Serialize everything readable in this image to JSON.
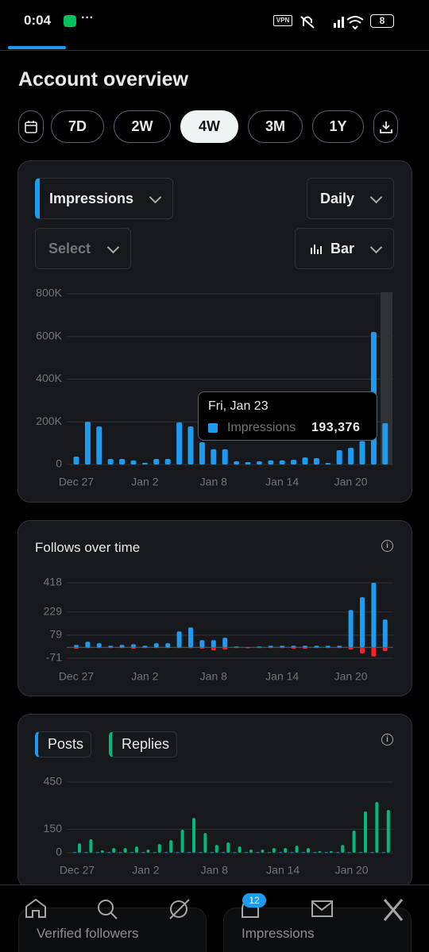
{
  "ui": {
    "status": {
      "time": "0:04",
      "battery": "8"
    },
    "header": {
      "title": "Account overview"
    },
    "ranges": [
      "7D",
      "2W",
      "4W",
      "3M",
      "1Y"
    ],
    "controls": {
      "metric": "Impressions",
      "interval": "Daily",
      "compare": "Select",
      "chart_style": "Bar"
    },
    "tooltip": {
      "title": "Fri, Jan 23",
      "series": "Impressions",
      "value": "193,376"
    },
    "bottom": {
      "badge": "12",
      "card_left": "Verified followers",
      "card_right": "Impressions"
    }
  },
  "chart_data": [
    {
      "type": "bar",
      "barmode": "overlay",
      "grid": true,
      "categories": [
        "Dec 27",
        null,
        null,
        null,
        null,
        null,
        "Jan 2",
        null,
        null,
        null,
        null,
        null,
        "Jan 8",
        null,
        null,
        null,
        null,
        null,
        "Jan 14",
        null,
        null,
        null,
        null,
        null,
        "Jan 20",
        null,
        null,
        null
      ],
      "series": [
        {
          "name": "Impressions",
          "color": "#1d9bf0",
          "values": [
            37000,
            200000,
            178000,
            26000,
            26000,
            19000,
            8000,
            26000,
            26000,
            197000,
            178000,
            104000,
            71000,
            71000,
            15000,
            11000,
            15000,
            19000,
            19000,
            22000,
            33000,
            30000,
            7000,
            67000,
            78000,
            110000,
            621000,
            193376
          ]
        }
      ],
      "ylim": [
        0,
        800000
      ],
      "yticks": [
        0,
        {
          "value": 200000,
          "label": "200K"
        },
        {
          "value": 400000,
          "label": "400K"
        },
        {
          "value": 600000,
          "label": "600K"
        },
        {
          "value": 800000,
          "label": "800K"
        }
      ]
    },
    {
      "type": "bar",
      "barmode": "overlay",
      "grid": true,
      "title": "Follows over time",
      "categories": [
        "Dec 27",
        null,
        null,
        null,
        null,
        null,
        "Jan 2",
        null,
        null,
        null,
        null,
        null,
        "Jan 8",
        null,
        null,
        null,
        null,
        null,
        "Jan 14",
        null,
        null,
        null,
        null,
        null,
        "Jan 20",
        null,
        null,
        null
      ],
      "series": [
        {
          "color": "#1d9bf0",
          "values": [
            15,
            36,
            26,
            10,
            15,
            20,
            10,
            26,
            26,
            103,
            129,
            46,
            46,
            62,
            5,
            0,
            5,
            10,
            10,
            10,
            10,
            10,
            10,
            10,
            242,
            325,
            418,
            180
          ]
        },
        {
          "color": "#f4212e",
          "values": [
            -10,
            -5,
            -5,
            -5,
            -5,
            -10,
            -5,
            -5,
            -5,
            -5,
            -5,
            -10,
            -20,
            -15,
            -5,
            -5,
            -5,
            -5,
            -5,
            -10,
            -10,
            -5,
            -5,
            -5,
            -15,
            -40,
            -60,
            -25
          ]
        }
      ],
      "ylim": [
        -71,
        418
      ],
      "yticks": [
        -71,
        79,
        229,
        418
      ]
    },
    {
      "type": "bar",
      "barmode": "group",
      "grid": true,
      "categories": [
        "Dec 27",
        null,
        null,
        null,
        null,
        null,
        "Jan 2",
        null,
        null,
        null,
        null,
        null,
        "Jan 8",
        null,
        null,
        null,
        null,
        null,
        "Jan 14",
        null,
        null,
        null,
        null,
        null,
        "Jan 20",
        null,
        null,
        null
      ],
      "series": [
        {
          "name": "Posts",
          "color": "#1d9bf0",
          "values": [
            4,
            4,
            4,
            4,
            4,
            4,
            4,
            4,
            4,
            4,
            4,
            4,
            4,
            4,
            4,
            4,
            4,
            4,
            4,
            4,
            4,
            4,
            4,
            4,
            4,
            4,
            4,
            4
          ]
        },
        {
          "name": "Replies",
          "color": "#00ba7c",
          "values": [
            60,
            86,
            15,
            30,
            30,
            40,
            20,
            55,
            80,
            146,
            222,
            126,
            50,
            66,
            40,
            20,
            20,
            30,
            30,
            45,
            30,
            10,
            10,
            50,
            141,
            263,
            323,
            273
          ]
        }
      ],
      "ylim": [
        0,
        450
      ],
      "yticks": [
        0,
        150,
        450
      ]
    }
  ]
}
